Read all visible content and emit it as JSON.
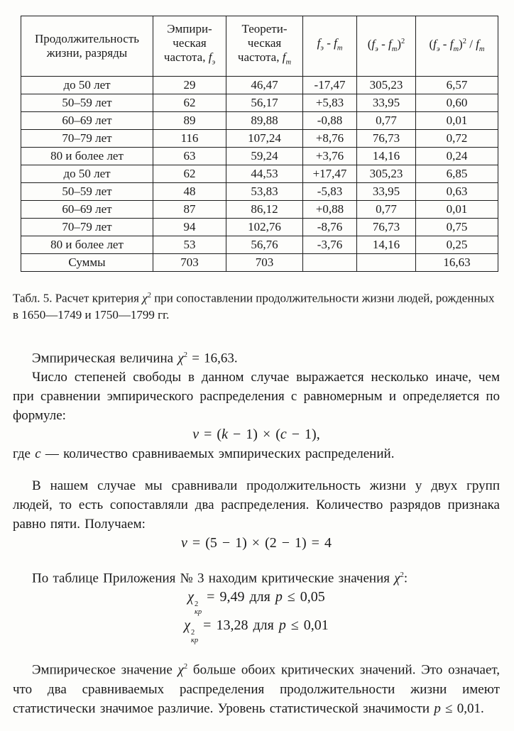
{
  "table": {
    "header": {
      "col1": "Продолжительность жизни, разряды",
      "col2": [
        {
          "t": "Эмпири-"
        },
        {
          "s": "br"
        },
        {
          "t": "ческая"
        },
        {
          "s": "br"
        },
        {
          "t": "частота, "
        },
        {
          "t": "f",
          "s": "i"
        },
        {
          "t": "э",
          "s": "sub"
        }
      ],
      "col3": [
        {
          "t": "Теорети-"
        },
        {
          "s": "br"
        },
        {
          "t": "ческая"
        },
        {
          "s": "br"
        },
        {
          "t": "частота, "
        },
        {
          "t": "f",
          "s": "i"
        },
        {
          "t": "m",
          "s": "sub"
        }
      ],
      "col4": [
        {
          "t": "f",
          "s": "i"
        },
        {
          "t": "э",
          "s": "sub"
        },
        {
          "t": " - "
        },
        {
          "t": "f",
          "s": "i"
        },
        {
          "t": "m",
          "s": "sub"
        }
      ],
      "col5": [
        {
          "t": "("
        },
        {
          "t": "f",
          "s": "i"
        },
        {
          "t": "э",
          "s": "sub"
        },
        {
          "t": " - "
        },
        {
          "t": "f",
          "s": "i"
        },
        {
          "t": "m",
          "s": "sub"
        },
        {
          "t": ")"
        },
        {
          "t": "2",
          "s": "sup"
        }
      ],
      "col6": [
        {
          "t": "("
        },
        {
          "t": "f",
          "s": "i"
        },
        {
          "t": "э",
          "s": "sub"
        },
        {
          "t": " - "
        },
        {
          "t": "f",
          "s": "i"
        },
        {
          "t": "m",
          "s": "sub"
        },
        {
          "t": ")"
        },
        {
          "t": "2",
          "s": "sup"
        },
        {
          "t": " / "
        },
        {
          "t": "f",
          "s": "i"
        },
        {
          "t": "m",
          "s": "sub"
        }
      ]
    },
    "rows": [
      [
        "до 50 лет",
        "29",
        "46,47",
        "-17,47",
        "305,23",
        "6,57"
      ],
      [
        "50–59 лет",
        "62",
        "56,17",
        "+5,83",
        "33,95",
        "0,60"
      ],
      [
        "60–69 лет",
        "89",
        "89,88",
        "-0,88",
        "0,77",
        "0,01"
      ],
      [
        "70–79 лет",
        "116",
        "107,24",
        "+8,76",
        "76,73",
        "0,72"
      ],
      [
        "80 и более лет",
        "63",
        "59,24",
        "+3,76",
        "14,16",
        "0,24"
      ],
      [
        "до 50 лет",
        "62",
        "44,53",
        "+17,47",
        "305,23",
        "6,85"
      ],
      [
        "50–59 лет",
        "48",
        "53,83",
        "-5,83",
        "33,95",
        "0,63"
      ],
      [
        "60–69 лет",
        "87",
        "86,12",
        "+0,88",
        "0,77",
        "0,01"
      ],
      [
        "70–79 лет",
        "94",
        "102,76",
        "-8,76",
        "76,73",
        "0,75"
      ],
      [
        "80 и более лет",
        "53",
        "56,76",
        "-3,76",
        "14,16",
        "0,25"
      ],
      [
        "Суммы",
        "703",
        "703",
        "",
        "",
        "16,63"
      ]
    ]
  },
  "caption_tokens": [
    {
      "t": "Табл. 5. Расчет критерия "
    },
    {
      "t": "χ",
      "s": "i"
    },
    {
      "t": "2",
      "s": "sup"
    },
    {
      "t": " при сопоставлении продолжительности жизни людей, рожденных в 1650—1749 и 1750—1799 гг."
    }
  ],
  "content": {
    "para_empirical": [
      {
        "t": "Эмпирическая величина "
      },
      {
        "t": "χ",
        "s": "i"
      },
      {
        "t": "2",
        "s": "sup"
      },
      {
        "t": " = 16,63."
      }
    ],
    "para_df": "Число степеней свободы в данном случае выражается несколько иначе, чем при сравнении эмпирического распределения с равномерным и определяется по формуле:",
    "formula_df": [
      {
        "t": "ν",
        "s": "i"
      },
      {
        "t": " = ("
      },
      {
        "t": "k",
        "s": "i"
      },
      {
        "t": " − 1) × ("
      },
      {
        "t": "c",
        "s": "i"
      },
      {
        "t": " − 1),"
      }
    ],
    "where_line": [
      {
        "t": "где "
      },
      {
        "t": "c",
        "s": "i"
      },
      {
        "t": " — количество сравниваемых эмпирических распределений."
      }
    ],
    "para_case": "В нашем случае мы сравнивали продолжительность жизни у двух групп людей, то есть сопоставляли два распределения. Количество разрядов признака равно пяти. Получаем:",
    "formula_df_value": [
      {
        "t": "ν",
        "s": "i"
      },
      {
        "t": " = (5 − 1) × (2 − 1) = 4"
      }
    ],
    "para_critical": [
      {
        "t": "По таблице Приложения № 3 находим критические значения "
      },
      {
        "t": "χ",
        "s": "i"
      },
      {
        "t": "2",
        "s": "sup"
      },
      {
        "t": ":"
      }
    ],
    "crit_005": [
      {
        "t": "χ",
        "s": "i"
      },
      {
        "s": "supsub",
        "sup": "2",
        "sub": "кр"
      },
      {
        "t": " = 9,49 для "
      },
      {
        "t": "p",
        "s": "i"
      },
      {
        "t": " ≤ 0,05"
      }
    ],
    "crit_001": [
      {
        "t": "χ",
        "s": "i"
      },
      {
        "s": "supsub",
        "sup": "2",
        "sub": "кр"
      },
      {
        "t": " = 13,28 для "
      },
      {
        "t": "p",
        "s": "i"
      },
      {
        "t": " ≤ 0,01"
      }
    ],
    "para_conclusion": [
      {
        "t": "Эмпирическое значение "
      },
      {
        "t": "χ",
        "s": "i"
      },
      {
        "t": "2",
        "s": "sup"
      },
      {
        "t": " больше обоих критических значений. Это означает, что два сравниваемых распределения продолжительности жизни имеют статистически значимое различие. Уровень статистической значимости "
      },
      {
        "t": "p",
        "s": "i"
      },
      {
        "t": " ≤ 0,01."
      }
    ]
  }
}
